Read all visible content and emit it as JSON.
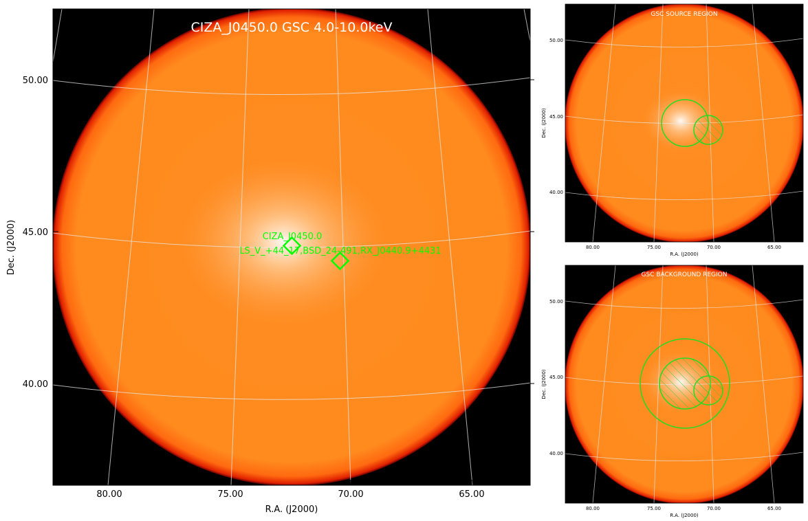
{
  "main_panel": {
    "title": "CIZA_J0450.0 GSC 4.0-10.0keV",
    "xlabel": "R.A. (J2000)",
    "ylabel": "Dec. (J2000)",
    "x_ticks": [
      "80.00",
      "75.00",
      "70.00",
      "65.00"
    ],
    "y_ticks": [
      "50.00",
      "45.00",
      "40.00"
    ],
    "source_label": "CIZA_J0450.0",
    "neighbor_label": "LS_V_+44_17,BSD_24-491,RX_J0440.9+4431",
    "marker_color": "#00ff00"
  },
  "source_panel": {
    "title": "GSC SOURCE REGION",
    "xlabel": "R.A. (J2000)",
    "ylabel": "Dec. (J2000)",
    "x_ticks": [
      "80.00",
      "75.00",
      "70.00",
      "65.00"
    ],
    "y_ticks": [
      "50.00",
      "45.00",
      "40.00"
    ]
  },
  "background_panel": {
    "title": "GSC BACKGROUND REGION",
    "xlabel": "R.A. (J2000)",
    "ylabel": "Dec. (J2000)",
    "x_ticks": [
      "80.00",
      "75.00",
      "70.00",
      "65.00"
    ],
    "y_ticks": [
      "50.00",
      "45.00",
      "40.00"
    ]
  },
  "colors": {
    "disk_center": "#ffffff",
    "disk_body": "#ff8a1e",
    "disk_edge": "#e02000",
    "background": "#000000",
    "region": "#22dd22"
  }
}
